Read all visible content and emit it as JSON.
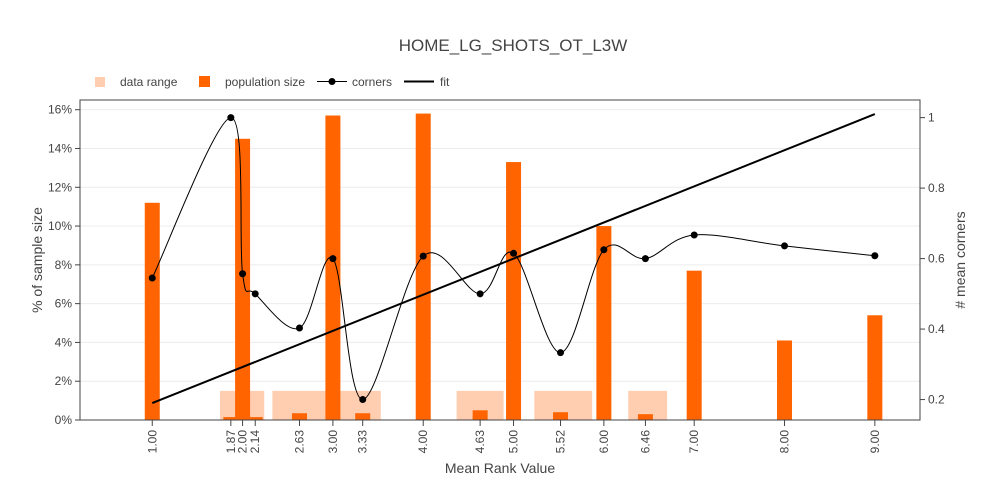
{
  "chart_data": {
    "type": "bar",
    "title": "HOME_LG_SHOTS_OT_L3W",
    "xlabel": "Mean Rank Value",
    "ylabel": "% of sample size",
    "y2label": "# mean corners",
    "legend": {
      "placement": "top-left",
      "entries": [
        "data range",
        "population size",
        "corners",
        "fit"
      ]
    },
    "colors": {
      "data_range": "#ffcdb0",
      "population": "#ff6400",
      "corners": "#000000",
      "fit": "#000000",
      "grid": "#ececec"
    },
    "xlim": [
      0.2,
      9.5
    ],
    "ylim": [
      0,
      16.5
    ],
    "y2lim": [
      0.142,
      1.05
    ],
    "x_ticks": [
      "1.00",
      "1.87",
      "2.00",
      "2.14",
      "2.63",
      "3.00",
      "3.33",
      "4.00",
      "4.63",
      "5.00",
      "5.52",
      "6.00",
      "6.46",
      "7.00",
      "8.00",
      "9.00"
    ],
    "y_ticks": [
      "0%",
      "2%",
      "4%",
      "6%",
      "8%",
      "10%",
      "12%",
      "14%",
      "16%"
    ],
    "y2_ticks": [
      "0.2",
      "0.4",
      "0.6",
      "0.8",
      "1"
    ],
    "data_range": [
      {
        "x0": 1.75,
        "x1": 2.24,
        "y": 1.5
      },
      {
        "x0": 2.33,
        "x1": 2.94,
        "y": 1.5
      },
      {
        "x0": 3.07,
        "x1": 3.53,
        "y": 1.5
      },
      {
        "x0": 4.37,
        "x1": 4.89,
        "y": 1.5
      },
      {
        "x0": 5.23,
        "x1": 5.87,
        "y": 1.5
      },
      {
        "x0": 6.27,
        "x1": 6.7,
        "y": 1.5
      }
    ],
    "population": {
      "x": [
        1.0,
        1.87,
        2.0,
        2.14,
        2.63,
        3.0,
        3.33,
        4.0,
        4.63,
        5.0,
        5.52,
        6.0,
        6.46,
        7.0,
        8.0,
        9.0
      ],
      "values": [
        11.2,
        0.15,
        14.5,
        0.15,
        0.35,
        15.7,
        0.35,
        15.8,
        0.5,
        13.3,
        0.4,
        10.0,
        0.3,
        7.7,
        4.1,
        5.4
      ]
    },
    "corners": {
      "x": [
        1.0,
        1.87,
        2.0,
        2.14,
        2.63,
        3.0,
        3.33,
        4.0,
        4.63,
        5.0,
        5.52,
        6.0,
        6.46,
        7.0,
        8.0,
        9.0
      ],
      "values": [
        0.545,
        1.0,
        0.557,
        0.5,
        0.403,
        0.6,
        0.2,
        0.607,
        0.5,
        0.615,
        0.333,
        0.625,
        0.6,
        0.667,
        0.636,
        0.608
      ]
    },
    "fit": {
      "x": [
        1.0,
        9.0
      ],
      "y2": [
        0.19,
        1.01
      ]
    }
  }
}
